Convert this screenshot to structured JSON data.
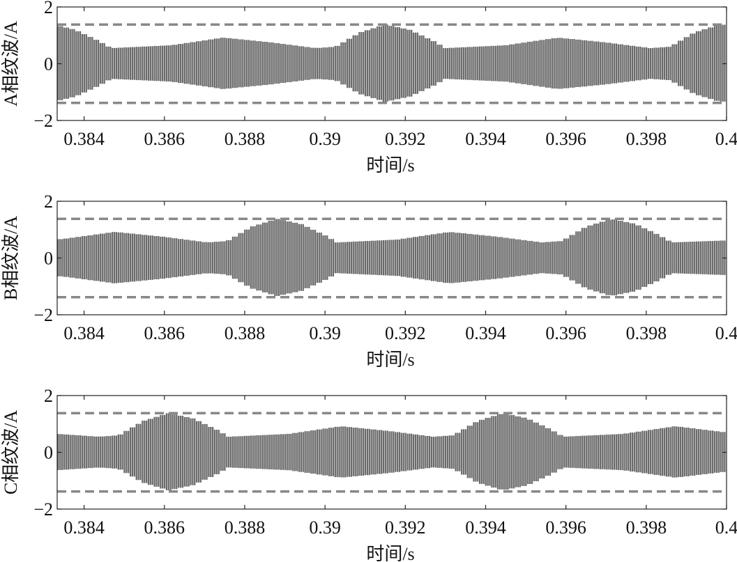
{
  "chart_data": [
    {
      "type": "line",
      "ylabel": "A相纹波/A",
      "xlabel": "时间/s",
      "xlim": [
        0.38333,
        0.4
      ],
      "ylim": [
        -2,
        2
      ],
      "xticks": [
        0.384,
        0.386,
        0.388,
        0.39,
        0.392,
        0.394,
        0.396,
        0.398,
        0.4
      ],
      "xtick_labels": [
        "0.384",
        "0.386",
        "0.388",
        "0.39",
        "0.392",
        "0.394",
        "0.396",
        "0.398",
        "0.4"
      ],
      "yticks": [
        -2,
        0,
        2
      ],
      "ytick_labels": [
        "−2",
        "0",
        "2"
      ],
      "limit_lines": [
        1.38,
        -1.38
      ],
      "series_color": "#6a6a6a",
      "limit_color": "#888888",
      "envelope": [
        [
          0.38333,
          1.35
        ],
        [
          0.38377,
          1.2
        ],
        [
          0.38437,
          0.8
        ],
        [
          0.38467,
          0.55
        ],
        [
          0.38617,
          0.65
        ],
        [
          0.38747,
          0.92
        ],
        [
          0.38867,
          0.75
        ],
        [
          0.38977,
          0.55
        ],
        [
          0.39027,
          0.6
        ],
        [
          0.39087,
          1.1
        ],
        [
          0.3915,
          1.38
        ],
        [
          0.3921,
          1.2
        ],
        [
          0.3927,
          0.8
        ],
        [
          0.393,
          0.55
        ],
        [
          0.3945,
          0.65
        ],
        [
          0.3958,
          0.92
        ],
        [
          0.397,
          0.75
        ],
        [
          0.3981,
          0.55
        ],
        [
          0.3986,
          0.6
        ],
        [
          0.3992,
          1.1
        ],
        [
          0.39983,
          1.38
        ],
        [
          0.4,
          1.37
        ]
      ]
    },
    {
      "type": "line",
      "ylabel": "B相纹波/A",
      "xlabel": "时间/s",
      "xlim": [
        0.38333,
        0.4
      ],
      "ylim": [
        -2,
        2
      ],
      "xticks": [
        0.384,
        0.386,
        0.388,
        0.39,
        0.392,
        0.394,
        0.396,
        0.398,
        0.4
      ],
      "xtick_labels": [
        "0.384",
        "0.386",
        "0.388",
        "0.39",
        "0.392",
        "0.394",
        "0.396",
        "0.398",
        "0.4"
      ],
      "yticks": [
        -2,
        0,
        2
      ],
      "ytick_labels": [
        "−2",
        "0",
        "2"
      ],
      "limit_lines": [
        1.38,
        -1.38
      ],
      "series_color": "#6a6a6a",
      "limit_color": "#888888",
      "envelope": [
        [
          0.38333,
          0.66
        ],
        [
          0.38347,
          0.67
        ],
        [
          0.38477,
          0.92
        ],
        [
          0.38597,
          0.75
        ],
        [
          0.38707,
          0.55
        ],
        [
          0.38757,
          0.6
        ],
        [
          0.38817,
          1.1
        ],
        [
          0.3888,
          1.38
        ],
        [
          0.3894,
          1.2
        ],
        [
          0.39,
          0.8
        ],
        [
          0.3903,
          0.55
        ],
        [
          0.3918,
          0.65
        ],
        [
          0.3931,
          0.92
        ],
        [
          0.3943,
          0.75
        ],
        [
          0.3954,
          0.55
        ],
        [
          0.3959,
          0.6
        ],
        [
          0.3965,
          1.1
        ],
        [
          0.39713,
          1.38
        ],
        [
          0.39773,
          1.2
        ],
        [
          0.39833,
          0.8
        ],
        [
          0.39863,
          0.55
        ],
        [
          0.4,
          0.62
        ]
      ]
    },
    {
      "type": "line",
      "ylabel": "C相纹波/A",
      "xlabel": "时间/s",
      "xlim": [
        0.38333,
        0.4
      ],
      "ylim": [
        -2,
        2
      ],
      "xticks": [
        0.384,
        0.386,
        0.388,
        0.39,
        0.392,
        0.394,
        0.396,
        0.398,
        0.4
      ],
      "xtick_labels": [
        "0.384",
        "0.386",
        "0.388",
        "0.39",
        "0.392",
        "0.394",
        "0.396",
        "0.398",
        "0.4"
      ],
      "yticks": [
        -2,
        0,
        2
      ],
      "ytick_labels": [
        "−2",
        "0",
        "2"
      ],
      "limit_lines": [
        1.38,
        -1.38
      ],
      "series_color": "#6a6a6a",
      "limit_color": "#888888",
      "envelope": [
        [
          0.38333,
          0.65
        ],
        [
          0.38437,
          0.55
        ],
        [
          0.38487,
          0.6
        ],
        [
          0.38547,
          1.1
        ],
        [
          0.3861,
          1.38
        ],
        [
          0.3867,
          1.2
        ],
        [
          0.3873,
          0.8
        ],
        [
          0.3876,
          0.55
        ],
        [
          0.3891,
          0.65
        ],
        [
          0.3904,
          0.92
        ],
        [
          0.3916,
          0.75
        ],
        [
          0.3927,
          0.55
        ],
        [
          0.3932,
          0.6
        ],
        [
          0.3938,
          1.1
        ],
        [
          0.39443,
          1.38
        ],
        [
          0.39503,
          1.2
        ],
        [
          0.39563,
          0.8
        ],
        [
          0.39593,
          0.55
        ],
        [
          0.39743,
          0.65
        ],
        [
          0.39873,
          0.92
        ],
        [
          0.4,
          0.7
        ]
      ]
    }
  ]
}
